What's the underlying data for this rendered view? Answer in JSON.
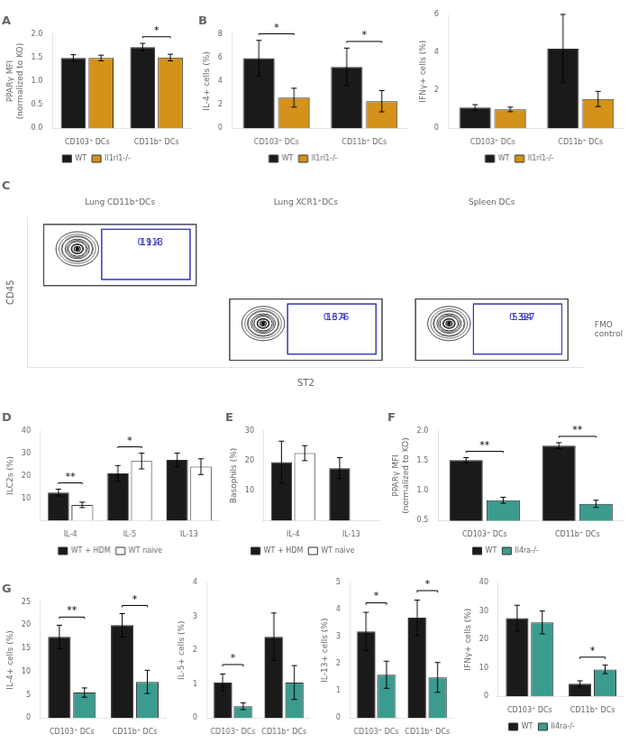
{
  "chart_data": [
    {
      "type": "bar",
      "title": "A",
      "categories": [
        "CD103⁺ DCs",
        "CD11b⁺ DCs"
      ],
      "ylabel": "PPARγ MFI\n(normalized to KO)",
      "ylim": [
        0,
        2.0
      ],
      "yticks": [
        {
          "value": 0,
          "label": "0.0"
        },
        0.5,
        {
          "value": 1,
          "label": "1.0"
        },
        1.5,
        {
          "value": 2,
          "label": "2.0"
        }
      ],
      "grid": false,
      "legend": "bottom",
      "series": [
        {
          "name": "WT",
          "color": "#1a1a1a",
          "values": [
            1.49,
            1.72
          ],
          "errors": [
            0.07,
            0.08
          ]
        },
        {
          "name": "Il1rl1-/-",
          "color": "#D4921B",
          "values": [
            1.49,
            1.5
          ],
          "errors": [
            0.06,
            0.07
          ]
        }
      ],
      "annotations": [
        {
          "category": "CD11b⁺ DCs",
          "text": "*"
        }
      ]
    },
    {
      "type": "bar",
      "title": "B",
      "categories": [
        "CD103⁺ DCs",
        "CD11b⁺ DCs"
      ],
      "ylabel": "IL-4+ cells (%)",
      "ylim": [
        0,
        8
      ],
      "yticks": [
        0,
        2,
        4,
        6,
        8
      ],
      "grid": false,
      "legend": "bottom",
      "series": [
        {
          "name": "WT",
          "color": "#1a1a1a",
          "values": [
            5.95,
            5.2
          ],
          "errors": [
            1.5,
            1.6
          ]
        },
        {
          "name": "Il1rl1-/-",
          "color": "#D4921B",
          "values": [
            2.6,
            2.3
          ],
          "errors": [
            0.8,
            0.9
          ]
        }
      ],
      "annotations": [
        {
          "category": "CD103⁺ DCs",
          "text": "*"
        },
        {
          "category": "CD11b⁺ DCs",
          "text": "*"
        }
      ]
    },
    {
      "type": "bar",
      "categories": [
        "CD103⁺ DCs",
        "CD11b⁺ DCs"
      ],
      "ylabel": "IFNγ+ cells (%)",
      "ylim": [
        0,
        6
      ],
      "yticks": [
        0,
        2,
        4,
        6
      ],
      "grid": false,
      "legend": "bottom",
      "series": [
        {
          "name": "WT",
          "color": "#1a1a1a",
          "values": [
            1.1,
            4.2
          ],
          "errors": [
            0.15,
            1.8
          ]
        },
        {
          "name": "Il1rl1-/-",
          "color": "#D4921B",
          "values": [
            1.0,
            1.55
          ],
          "errors": [
            0.12,
            0.4
          ]
        }
      ]
    },
    {
      "type": "flow",
      "title": "C",
      "color": "#3333BB",
      "categories": [
        "Lung CD11b⁺DCs",
        "Lung XCR1⁺DCs",
        "Spleen DCs"
      ],
      "xlabel": "ST2",
      "ylabel": "CD45",
      "data_labels": true,
      "series": [
        {
          "values": [
            19.4,
            16.4,
            5.94
          ]
        },
        {
          "name": "FMO\ncontrol",
          "values": [
            0.113,
            0.376,
            0.327
          ]
        }
      ]
    },
    {
      "type": "bar",
      "title": "D",
      "categories": [
        "IL-4",
        "IL-5",
        "IL-13"
      ],
      "ylabel": "ILC2s (%)",
      "ylim": [
        0,
        40
      ],
      "yticks": [
        10,
        20,
        30,
        40
      ],
      "grid": false,
      "legend": "bottom",
      "series": [
        {
          "name": "WT + HDM",
          "color": "#1a1a1a",
          "values": [
            12.5,
            21.0,
            27.0
          ],
          "errors": [
            1.5,
            3.5,
            3.0
          ]
        },
        {
          "name": "WT naive",
          "color": "#ffffff",
          "values": [
            7.0,
            26.5,
            24.0
          ],
          "errors": [
            1.2,
            3.5,
            3.5
          ]
        }
      ],
      "annotations": [
        {
          "category": "IL-4",
          "text": "**"
        },
        {
          "category": "IL-5",
          "text": "*"
        }
      ]
    },
    {
      "type": "bar",
      "title": "E",
      "categories": [
        "IL-4",
        "IL-13"
      ],
      "ylabel": "Basophils (%)",
      "ylim": [
        0,
        30
      ],
      "yticks": [
        10,
        20,
        30
      ],
      "grid": false,
      "legend": "bottom",
      "series": [
        {
          "name": "WT + HDM",
          "color": "#1a1a1a",
          "values": [
            19.5,
            17.5
          ],
          "errors": [
            7.0,
            3.5
          ]
        },
        {
          "name": "WT naive",
          "color": "#ffffff",
          "values": [
            22.5,
            null
          ],
          "errors": [
            2.5,
            null
          ]
        }
      ]
    },
    {
      "type": "bar",
      "title": "F",
      "categories": [
        "CD103⁺ DCs",
        "CD11b⁺ DCs"
      ],
      "ylabel": "PPARγ MFI\n(normalized to KO)",
      "ylim": [
        0.5,
        2.0
      ],
      "yticks": [
        0.5,
        {
          "value": 1,
          "label": "1.0"
        },
        1.5,
        {
          "value": 2,
          "label": "2.0"
        }
      ],
      "grid": false,
      "legend": "bottom",
      "series": [
        {
          "name": "WT",
          "color": "#1a1a1a",
          "values": [
            1.51,
            1.75
          ],
          "errors": [
            0.04,
            0.05
          ]
        },
        {
          "name": "Il4ra-/-",
          "color": "#3B9B8E",
          "values": [
            0.84,
            0.78
          ],
          "errors": [
            0.05,
            0.06
          ]
        }
      ],
      "annotations": [
        {
          "category": "CD103⁺ DCs",
          "text": "**"
        },
        {
          "category": "CD11b⁺ DCs",
          "text": "**"
        }
      ]
    },
    {
      "type": "bar",
      "title": "G",
      "categories": [
        "CD103⁺ DCs",
        "CD11b⁺ DCs"
      ],
      "ylabel": "IL-4+ cells (%)",
      "ylim": [
        0,
        25
      ],
      "yticks": [
        0,
        5,
        10,
        15,
        20,
        25
      ],
      "grid": false,
      "series": [
        {
          "color": "#1a1a1a",
          "values": [
            17.5,
            20.0
          ],
          "errors": [
            2.5,
            2.5
          ]
        },
        {
          "color": "#3B9B8E",
          "values": [
            5.5,
            7.8
          ],
          "errors": [
            1.0,
            2.5
          ]
        }
      ],
      "annotations": [
        {
          "category": "CD103⁺ DCs",
          "text": "**"
        },
        {
          "category": "CD11b⁺ DCs",
          "text": "*"
        }
      ]
    },
    {
      "type": "bar",
      "categories": [
        "CD103⁺ DCs",
        "CD11b⁺ DCs"
      ],
      "ylabel": "IL-5+ cells (%)",
      "ylim": [
        0,
        4
      ],
      "yticks": [
        0,
        1,
        2,
        3,
        4
      ],
      "grid": false,
      "series": [
        {
          "color": "#1a1a1a",
          "values": [
            1.05,
            2.4
          ],
          "errors": [
            0.25,
            0.7
          ]
        },
        {
          "color": "#3B9B8E",
          "values": [
            0.35,
            1.05
          ],
          "errors": [
            0.1,
            0.5
          ]
        }
      ],
      "annotations": [
        {
          "category": "CD103⁺ DCs",
          "text": "*"
        }
      ]
    },
    {
      "type": "bar",
      "categories": [
        "CD103⁺ DCs",
        "CD11b⁺ DCs"
      ],
      "ylabel": "IL-13+ cells (%)",
      "ylim": [
        0,
        5
      ],
      "yticks": [
        0,
        1,
        2,
        3,
        4,
        5
      ],
      "grid": false,
      "series": [
        {
          "color": "#1a1a1a",
          "values": [
            3.2,
            3.7
          ],
          "errors": [
            0.7,
            0.65
          ]
        },
        {
          "color": "#3B9B8E",
          "values": [
            1.6,
            1.5
          ],
          "errors": [
            0.5,
            0.55
          ]
        }
      ],
      "annotations": [
        {
          "category": "CD103⁺ DCs",
          "text": "*"
        },
        {
          "category": "CD11b⁺ DCs",
          "text": "*"
        }
      ]
    },
    {
      "type": "bar",
      "categories": [
        "CD103⁺ DCs",
        "CD11b⁺ DCs"
      ],
      "ylabel": "IFNγ+ cells (%)",
      "ylim": [
        0,
        40
      ],
      "yticks": [
        0,
        10,
        20,
        30,
        40
      ],
      "grid": false,
      "legend": "bottom",
      "series": [
        {
          "name": "WT",
          "color": "#1a1a1a",
          "values": [
            27.5,
            4.5
          ],
          "errors": [
            4.5,
            1.0
          ]
        },
        {
          "name": "Il4ra-/-",
          "color": "#3B9B8E",
          "values": [
            26.0,
            9.5
          ],
          "errors": [
            4.0,
            1.5
          ]
        }
      ],
      "annotations": [
        {
          "category": "CD11b⁺ DCs",
          "text": "*"
        }
      ]
    }
  ]
}
